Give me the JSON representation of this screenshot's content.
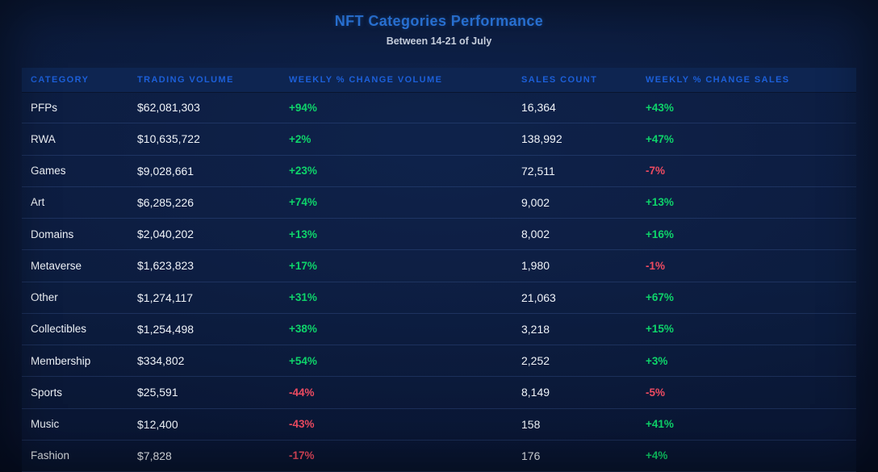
{
  "title": "NFT Categories Performance",
  "subtitle": "Between 14-21 of July",
  "colors": {
    "background": "#0a1734",
    "header_band": "#0e2551",
    "title_blue": "#2e80f0",
    "header_text_blue": "#1c5fd8",
    "body_text": "#eff3f8",
    "positive_green": "#0ed46a",
    "negative_red": "#ef4b61"
  },
  "table": {
    "columns": [
      "CATEGORY",
      "TRADING VOLUME",
      "WEEKLY % CHANGE VOLUME",
      "SALES COUNT",
      "WEEKLY % CHANGE SALES"
    ],
    "rows": [
      {
        "category": "PFPs",
        "trading_volume": "$62,081,303",
        "weekly_change_volume": "+94%",
        "sales_count": "16,364",
        "weekly_change_sales": "+43%"
      },
      {
        "category": "RWA",
        "trading_volume": "$10,635,722",
        "weekly_change_volume": "+2%",
        "sales_count": "138,992",
        "weekly_change_sales": "+47%"
      },
      {
        "category": "Games",
        "trading_volume": "$9,028,661",
        "weekly_change_volume": "+23%",
        "sales_count": "72,511",
        "weekly_change_sales": "-7%"
      },
      {
        "category": "Art",
        "trading_volume": "$6,285,226",
        "weekly_change_volume": "+74%",
        "sales_count": "9,002",
        "weekly_change_sales": "+13%"
      },
      {
        "category": "Domains",
        "trading_volume": "$2,040,202",
        "weekly_change_volume": "+13%",
        "sales_count": "8,002",
        "weekly_change_sales": "+16%"
      },
      {
        "category": "Metaverse",
        "trading_volume": "$1,623,823",
        "weekly_change_volume": "+17%",
        "sales_count": "1,980",
        "weekly_change_sales": "-1%"
      },
      {
        "category": "Other",
        "trading_volume": "$1,274,117",
        "weekly_change_volume": "+31%",
        "sales_count": "21,063",
        "weekly_change_sales": "+67%"
      },
      {
        "category": "Collectibles",
        "trading_volume": "$1,254,498",
        "weekly_change_volume": "+38%",
        "sales_count": "3,218",
        "weekly_change_sales": "+15%"
      },
      {
        "category": "Membership",
        "trading_volume": "$334,802",
        "weekly_change_volume": "+54%",
        "sales_count": "2,252",
        "weekly_change_sales": "+3%"
      },
      {
        "category": "Sports",
        "trading_volume": "$25,591",
        "weekly_change_volume": "-44%",
        "sales_count": "8,149",
        "weekly_change_sales": "-5%"
      },
      {
        "category": "Music",
        "trading_volume": "$12,400",
        "weekly_change_volume": "-43%",
        "sales_count": "158",
        "weekly_change_sales": "+41%"
      },
      {
        "category": "Fashion",
        "trading_volume": "$7,828",
        "weekly_change_volume": "-17%",
        "sales_count": "176",
        "weekly_change_sales": "+4%"
      }
    ]
  },
  "chart_data": {
    "type": "table",
    "title": "NFT Categories Performance",
    "subtitle": "Between 14-21 of July",
    "columns": [
      "CATEGORY",
      "TRADING VOLUME",
      "WEEKLY % CHANGE VOLUME",
      "SALES COUNT",
      "WEEKLY % CHANGE SALES"
    ],
    "rows": [
      [
        "PFPs",
        "$62,081,303",
        "+94%",
        "16,364",
        "+43%"
      ],
      [
        "RWA",
        "$10,635,722",
        "+2%",
        "138,992",
        "+47%"
      ],
      [
        "Games",
        "$9,028,661",
        "+23%",
        "72,511",
        "-7%"
      ],
      [
        "Art",
        "$6,285,226",
        "+74%",
        "9,002",
        "+13%"
      ],
      [
        "Domains",
        "$2,040,202",
        "+13%",
        "8,002",
        "+16%"
      ],
      [
        "Metaverse",
        "$1,623,823",
        "+17%",
        "1,980",
        "-1%"
      ],
      [
        "Other",
        "$1,274,117",
        "+31%",
        "21,063",
        "+67%"
      ],
      [
        "Collectibles",
        "$1,254,498",
        "+38%",
        "3,218",
        "+15%"
      ],
      [
        "Membership",
        "$334,802",
        "+54%",
        "2,252",
        "+3%"
      ],
      [
        "Sports",
        "$25,591",
        "-44%",
        "8,149",
        "-5%"
      ],
      [
        "Music",
        "$12,400",
        "-43%",
        "158",
        "+41%"
      ],
      [
        "Fashion",
        "$7,828",
        "-17%",
        "176",
        "+4%"
      ]
    ]
  }
}
